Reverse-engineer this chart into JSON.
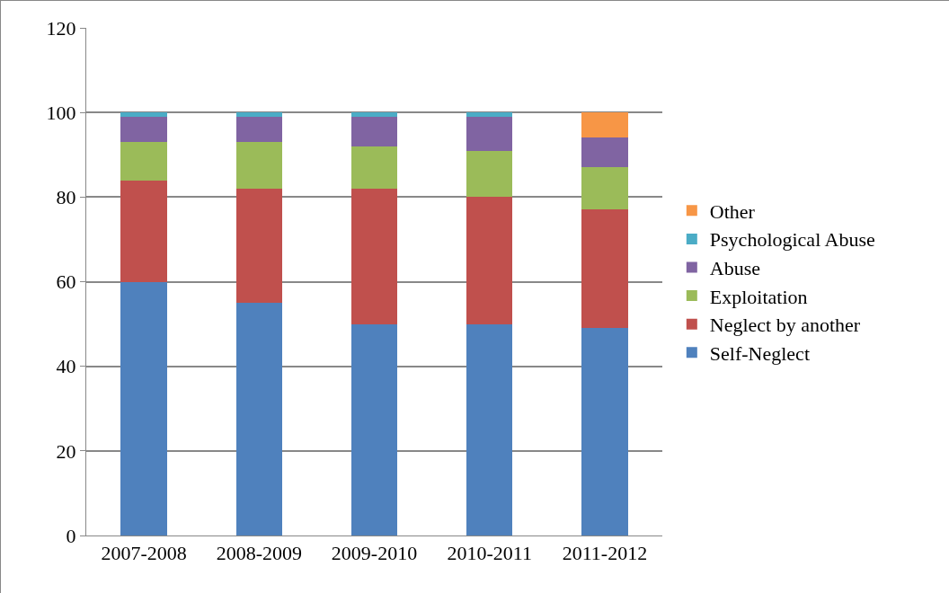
{
  "chart_data": {
    "type": "bar",
    "stacked": true,
    "categories": [
      "2007-2008",
      "2008-2009",
      "2009-2010",
      "2010-2011",
      "2011-2012"
    ],
    "series": [
      {
        "name": "Self-Neglect",
        "color": "#4f81bd",
        "values": [
          60,
          55,
          50,
          50,
          49
        ]
      },
      {
        "name": "Neglect by another",
        "color": "#c0504d",
        "values": [
          24,
          27,
          32,
          30,
          28
        ]
      },
      {
        "name": "Exploitation",
        "color": "#9bbb59",
        "values": [
          9,
          11,
          10,
          11,
          10
        ]
      },
      {
        "name": "Abuse",
        "color": "#8064a2",
        "values": [
          6,
          6,
          7,
          8,
          7
        ]
      },
      {
        "name": "Psychological Abuse",
        "color": "#4bacc6",
        "values": [
          1,
          1,
          1,
          1,
          0
        ]
      },
      {
        "name": "Other",
        "color": "#f79646",
        "values": [
          0,
          0,
          0,
          0,
          6
        ]
      }
    ],
    "ylim": [
      0,
      120
    ],
    "yticks": [
      0,
      20,
      40,
      60,
      80,
      100,
      120
    ],
    "grid": "y",
    "legend": "right"
  }
}
